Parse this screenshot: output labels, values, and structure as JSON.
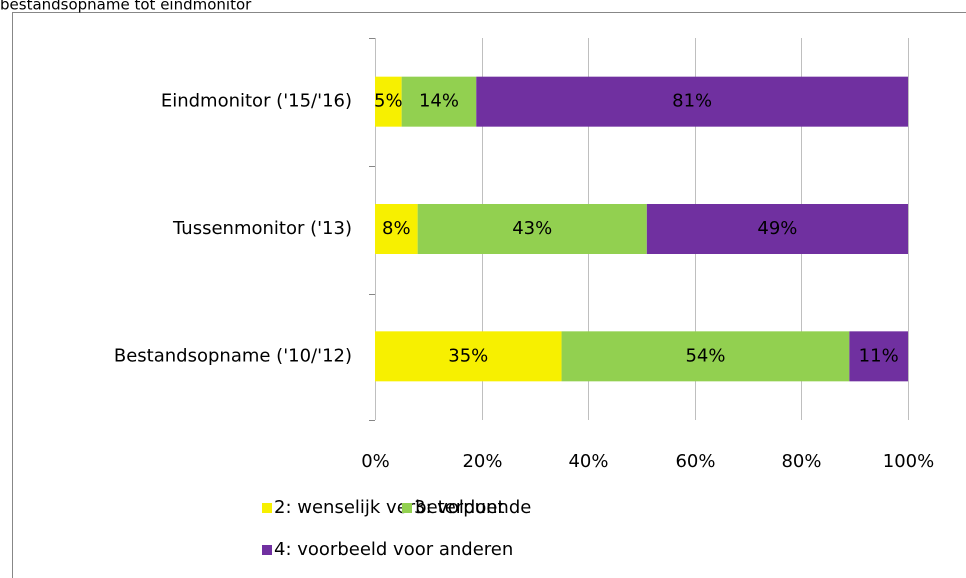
{
  "chart_data": {
    "type": "stacked-bar-horizontal",
    "title": "bestandsopname tot eindmonitor",
    "categories": [
      "Eindmonitor ('15/'16)",
      "Tussenmonitor ('13)",
      "Bestandsopname ('10/'12)"
    ],
    "series": [
      {
        "name": "2: wenselijk verbeterpunt",
        "color": "#f7f000",
        "values": [
          5,
          8,
          35
        ],
        "value_labels": [
          "5%",
          "8%",
          "35%"
        ]
      },
      {
        "name": "3: voldoende",
        "color": "#92d050",
        "values": [
          14,
          43,
          54
        ],
        "value_labels": [
          "14%",
          "43%",
          "54%"
        ]
      },
      {
        "name": "4: voorbeeld voor anderen",
        "color": "#7030a0",
        "values": [
          81,
          49,
          11
        ],
        "value_labels": [
          "81%",
          "49%",
          "11%"
        ]
      }
    ],
    "xlim": [
      0,
      100
    ],
    "xticks": [
      {
        "value": 0,
        "label": "0%"
      },
      {
        "value": 20,
        "label": "20%"
      },
      {
        "value": 40,
        "label": "40%"
      },
      {
        "value": 60,
        "label": "60%"
      },
      {
        "value": 80,
        "label": "80%"
      },
      {
        "value": 100,
        "label": "100%"
      }
    ],
    "grid": true,
    "legend": "bottom"
  }
}
